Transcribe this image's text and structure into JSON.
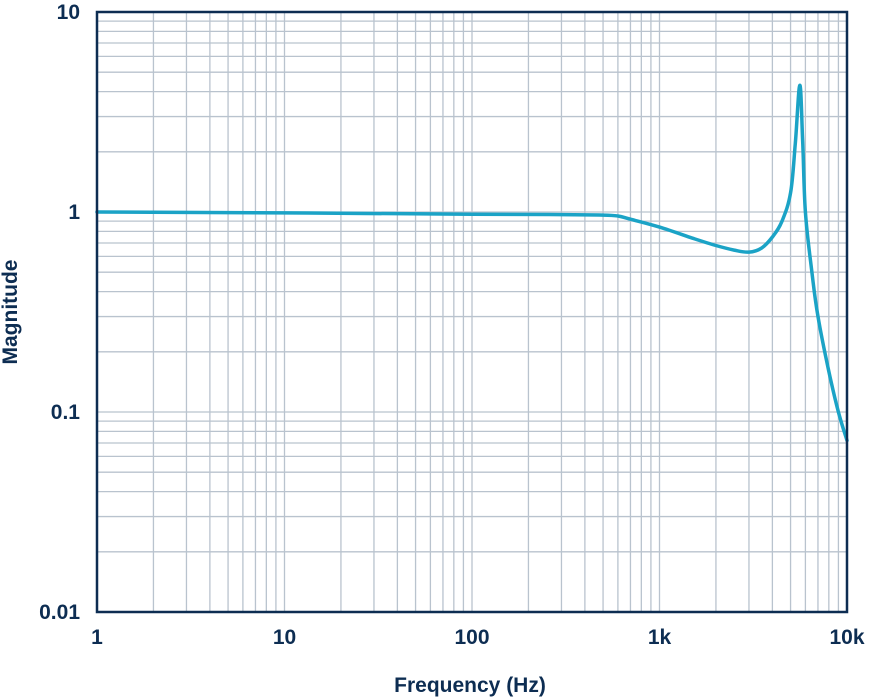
{
  "chart_data": {
    "type": "line",
    "xlabel": "Frequency (Hz)",
    "ylabel": "Magnitude",
    "x_scale": "log",
    "y_scale": "log",
    "xlim": [
      1,
      10000
    ],
    "ylim": [
      0.01,
      10
    ],
    "grid": true,
    "x_ticks": [
      {
        "value": 1,
        "label": "1"
      },
      {
        "value": 10,
        "label": "10"
      },
      {
        "value": 100,
        "label": "100"
      },
      {
        "value": 1000,
        "label": "1k"
      },
      {
        "value": 10000,
        "label": "10k"
      }
    ],
    "y_ticks": [
      {
        "value": 0.01,
        "label": "0.01"
      },
      {
        "value": 0.1,
        "label": "0.1"
      },
      {
        "value": 1,
        "label": "1"
      },
      {
        "value": 10,
        "label": "10"
      }
    ],
    "series": [
      {
        "color": "#1ba3c6",
        "x": [
          1,
          10,
          100,
          300,
          500,
          600,
          700,
          1000,
          1500,
          2000,
          2500,
          3000,
          3500,
          4000,
          4500,
          5000,
          5300,
          5600,
          5800,
          6000,
          6500,
          7000,
          8000,
          9000,
          10000
        ],
        "y": [
          1.0,
          0.99,
          0.975,
          0.97,
          0.965,
          0.955,
          0.92,
          0.84,
          0.74,
          0.68,
          0.645,
          0.63,
          0.66,
          0.75,
          0.9,
          1.25,
          2.2,
          4.3,
          2.3,
          1.0,
          0.5,
          0.3,
          0.16,
          0.1,
          0.072
        ]
      }
    ]
  }
}
